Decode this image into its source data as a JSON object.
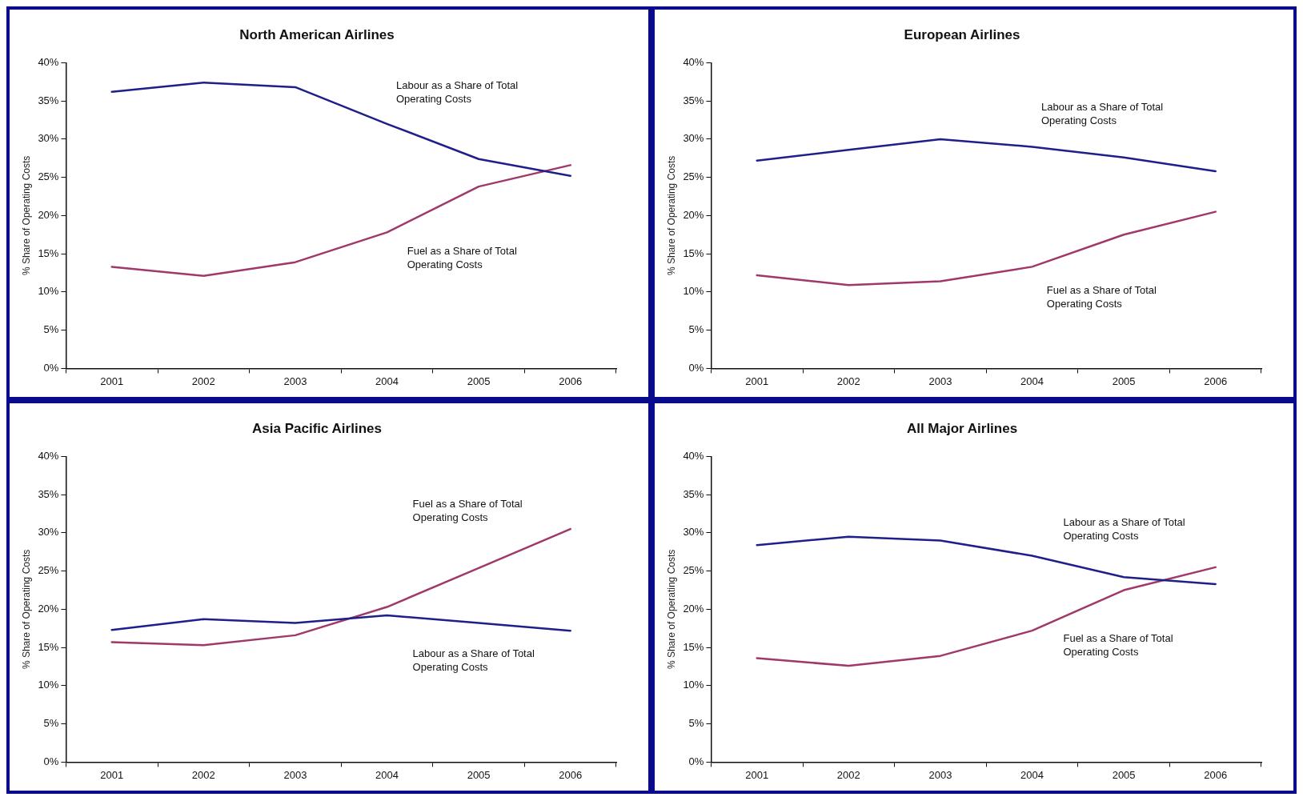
{
  "chart_data": [
    {
      "type": "line",
      "title": "North American Airlines",
      "ylabel": "% Share of Operating Costs",
      "categories": [
        "2001",
        "2002",
        "2003",
        "2004",
        "2005",
        "2006"
      ],
      "ylim": [
        0,
        40
      ],
      "yticks": [
        {
          "value": 0,
          "label": "0%"
        },
        {
          "value": 5,
          "label": "5%"
        },
        {
          "value": 10,
          "label": "10%"
        },
        {
          "value": 15,
          "label": "15%"
        },
        {
          "value": 20,
          "label": "20%"
        },
        {
          "value": 25,
          "label": "25%"
        },
        {
          "value": 30,
          "label": "30%"
        },
        {
          "value": 35,
          "label": "35%"
        },
        {
          "value": 40,
          "label": "40%"
        }
      ],
      "grid": false,
      "legend": false,
      "marker": "none",
      "line_style": "solid",
      "series": [
        {
          "name": "Labour as a Share of Total Operating Costs",
          "color": "#1f1f8c",
          "values": [
            36.2,
            37.4,
            36.8,
            32.0,
            27.4,
            25.2
          ]
        },
        {
          "name": "Fuel as a Share of Total Operating Costs",
          "color": "#a0386a",
          "values": [
            13.3,
            12.1,
            13.9,
            17.8,
            23.8,
            26.6
          ]
        }
      ]
    },
    {
      "type": "line",
      "title": "European Airlines",
      "ylabel": "% Share of Operating Costs",
      "categories": [
        "2001",
        "2002",
        "2003",
        "2004",
        "2005",
        "2006"
      ],
      "ylim": [
        0,
        40
      ],
      "yticks": [
        {
          "value": 0,
          "label": "0%"
        },
        {
          "value": 5,
          "label": "5%"
        },
        {
          "value": 10,
          "label": "10%"
        },
        {
          "value": 15,
          "label": "15%"
        },
        {
          "value": 20,
          "label": "20%"
        },
        {
          "value": 25,
          "label": "25%"
        },
        {
          "value": 30,
          "label": "30%"
        },
        {
          "value": 35,
          "label": "35%"
        },
        {
          "value": 40,
          "label": "40%"
        }
      ],
      "grid": false,
      "legend": false,
      "marker": "none",
      "line_style": "solid",
      "series": [
        {
          "name": "Labour as a Share of Total Operating Costs",
          "color": "#1f1f8c",
          "values": [
            27.2,
            28.6,
            30.0,
            29.0,
            27.6,
            25.8
          ]
        },
        {
          "name": "Fuel as a Share of Total Operating Costs",
          "color": "#a0386a",
          "values": [
            12.2,
            10.9,
            11.4,
            13.3,
            17.5,
            20.5
          ]
        }
      ]
    },
    {
      "type": "line",
      "title": "Asia Pacific Airlines",
      "ylabel": "% Share of Operating Costs",
      "categories": [
        "2001",
        "2002",
        "2003",
        "2004",
        "2005",
        "2006"
      ],
      "ylim": [
        0,
        40
      ],
      "yticks": [
        {
          "value": 0,
          "label": "0%"
        },
        {
          "value": 5,
          "label": "5%"
        },
        {
          "value": 10,
          "label": "10%"
        },
        {
          "value": 15,
          "label": "15%"
        },
        {
          "value": 20,
          "label": "20%"
        },
        {
          "value": 25,
          "label": "25%"
        },
        {
          "value": 30,
          "label": "30%"
        },
        {
          "value": 35,
          "label": "35%"
        },
        {
          "value": 40,
          "label": "40%"
        }
      ],
      "grid": false,
      "legend": false,
      "marker": "none",
      "line_style": "solid",
      "series": [
        {
          "name": "Labour as a Share of Total Operating Costs",
          "color": "#1f1f8c",
          "values": [
            17.3,
            18.7,
            18.2,
            19.2,
            18.2,
            17.2
          ]
        },
        {
          "name": "Fuel as a Share of Total Operating Costs",
          "color": "#a0386a",
          "values": [
            15.7,
            15.3,
            16.6,
            20.3,
            25.4,
            30.5
          ]
        }
      ]
    },
    {
      "type": "line",
      "title": "All Major Airlines",
      "ylabel": "% Share of Operating Costs",
      "categories": [
        "2001",
        "2002",
        "2003",
        "2004",
        "2005",
        "2006"
      ],
      "ylim": [
        0,
        40
      ],
      "yticks": [
        {
          "value": 0,
          "label": "0%"
        },
        {
          "value": 5,
          "label": "5%"
        },
        {
          "value": 10,
          "label": "10%"
        },
        {
          "value": 15,
          "label": "15%"
        },
        {
          "value": 20,
          "label": "20%"
        },
        {
          "value": 25,
          "label": "25%"
        },
        {
          "value": 30,
          "label": "30%"
        },
        {
          "value": 35,
          "label": "35%"
        },
        {
          "value": 40,
          "label": "40%"
        }
      ],
      "grid": false,
      "legend": false,
      "marker": "none",
      "line_style": "solid",
      "series": [
        {
          "name": "Labour as a Share of Total Operating Costs",
          "color": "#1f1f8c",
          "values": [
            28.4,
            29.5,
            29.0,
            27.0,
            24.2,
            23.3
          ]
        },
        {
          "name": "Fuel as a Share of Total Operating Costs",
          "color": "#a0386a",
          "values": [
            13.6,
            12.6,
            13.9,
            17.2,
            22.5,
            25.5
          ]
        }
      ]
    }
  ]
}
